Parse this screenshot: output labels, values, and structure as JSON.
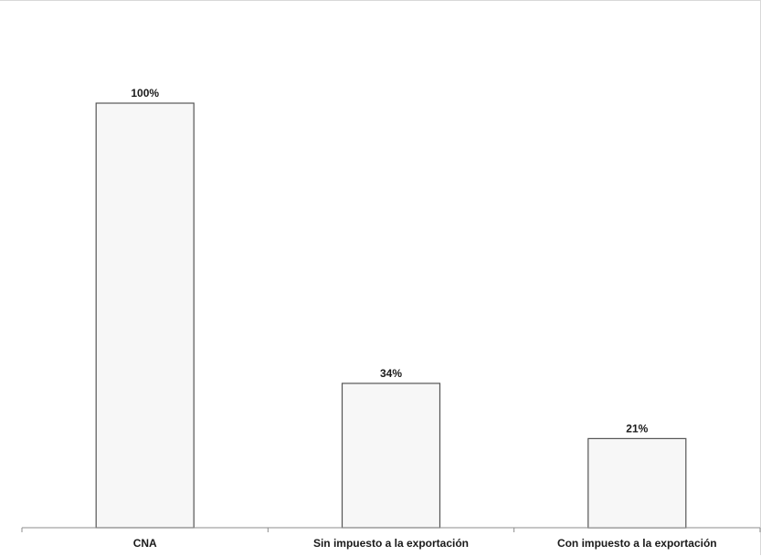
{
  "chart_data": {
    "type": "bar",
    "categories": [
      "CNA",
      "Sin impuesto a la exportación",
      "Con impuesto a la exportación"
    ],
    "values": [
      100,
      34,
      21
    ],
    "data_labels": [
      "100%",
      "34%",
      "21%"
    ],
    "title": "",
    "xlabel": "",
    "ylabel": "",
    "ylim": [
      0,
      115
    ],
    "grid": false,
    "legend": "none",
    "bar_fill": "#f7f7f7",
    "bar_stroke": "#555555"
  }
}
